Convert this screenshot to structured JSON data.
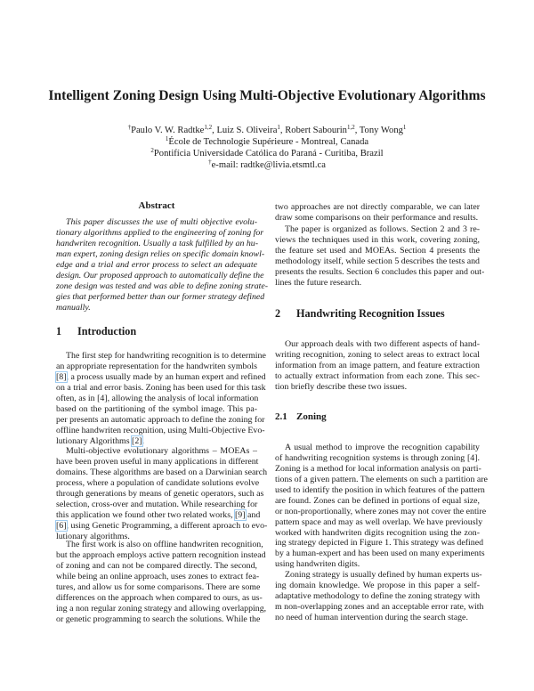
{
  "title": "Intelligent Zoning Design Using Multi-Objective Evolutionary Algorithms",
  "authors": [
    {
      "pre": "†",
      "name": "Paulo V. W. Radtke",
      "sup": "1,2",
      "sep": ", "
    },
    {
      "pre": "",
      "name": "Luiz S. Oliveira",
      "sup": "1",
      "sep": ", "
    },
    {
      "pre": "",
      "name": "Robert Sabourin",
      "sup": "1,2",
      "sep": ", "
    },
    {
      "pre": "",
      "name": "Tony Wong",
      "sup": "1",
      "sep": ""
    }
  ],
  "affiliations": [
    {
      "sup": "1",
      "text": "École de Technologie Supérieure - Montreal, Canada"
    },
    {
      "sup": "2",
      "text": "Pontifícia Universidade Católica do Paraná - Curitiba, Brazil"
    },
    {
      "sup": "†",
      "text": "e-mail: radtke@livia.etsmtl.ca"
    }
  ],
  "abstract": {
    "heading": "Abstract",
    "lines": [
      "This paper discusses the use of multi objective evolu-",
      "tionary algorithms applied to the engineering of zoning for",
      "handwriten recognition. Usually a task fulfilled by an hu-",
      "man expert, zoning design relies on specific domain knowl-",
      "edge and a trial and error process to select an adequate",
      "design. Our proposed approach to automatically define the",
      "zone design was tested and was able to define zoning strate-",
      "gies that performed better than our former strategy defined",
      "manually."
    ]
  },
  "sections": {
    "s1": {
      "num": "1",
      "title": "Introduction"
    },
    "s2": {
      "num": "2",
      "title": "Handwriting Recognition Issues"
    },
    "s21": {
      "num": "2.1",
      "title": "Zoning"
    }
  },
  "left_paragraphs": [
    [
      "The first step for handwriting recognition is to determine",
      "an appropriate representation for the handwriten symbols",
      "[8], a process usually made by an human expert and refined",
      "on a trial and error basis. Zoning has been used for this task",
      "often, as in [4], allowing the analysis of local information",
      "based on the partitioning of the symbol image. This pa-",
      "per presents an automatic approach to define the zoning for",
      "offline handwriten recognition, using Multi-Objective Evo-",
      "lutionary Algorithms [2]."
    ],
    [
      "Multi-objective evolutionary algorithms – MOEAs –",
      "have been proven useful in many applications in different",
      "domains. These algorithms are based on a Darwinian search",
      "process, where a population of candidate solutions evolve",
      "through generations by means of genetic operators, such as",
      "selection, cross-over and mutation. While researching for",
      "this application we found other two related works, [9] and",
      "[6], using Genetic Programming, a different aproach to evo-",
      "lutionary algorithms."
    ],
    [
      "The first work is also on offline handwriten recognition,",
      "but the approach employs active pattern recognition instead",
      "of zoning and can not be compared directly. The second,",
      "while being an online approach, uses zones to extract fea-",
      "tures, and allow us for some comparisons. There are some",
      "differences on the approach when compared to ours, as us-",
      "ing a non regular zoning strategy and allowing overlapping,",
      "or genetic programming to search the solutions. While the"
    ]
  ],
  "right_paragraphs": [
    [
      "two approaches are not directly comparable, we can later",
      "draw some comparisons on their performance and results."
    ],
    [
      "The paper is organized as follows. Section 2 and 3 re-",
      "views the techniques used in this work, covering zoning,",
      "the feature set used and MOEAs. Section 4 presents the",
      "methodology itself, while section 5 describes the tests and",
      "presents the results. Section 6 concludes this paper and out-",
      "lines the future research."
    ],
    [
      "Our approach deals with two different aspects of hand-",
      "writing recognition, zoning to select areas to extract local",
      "information from an image pattern, and feature extraction",
      "to actually extract information from each zone. This sec-",
      "tion briefly describe these two issues."
    ],
    [
      "A usual method to improve the recognition capability",
      "of handwriting recognition systems is through zoning [4].",
      "Zoning is a method for local information analysis on parti-",
      "tions of a given pattern. The elements on such a partition are",
      "used to identify the position in which features of the pattern",
      "are found. Zones can be defined in portions of equal size,",
      "or non-proportionally, where zones may not cover the entire",
      "pattern space and may as well overlap. We have previously",
      "worked with handwriten digits recognition using the zon-",
      "ing strategy depicted in Figure 1. This strategy was defined",
      "by a human-expert and has been used on many experiments",
      "using handwriten digits."
    ],
    [
      "Zoning strategy is usually defined by human experts us-",
      "ing domain knowledge. We propose in this paper a self-",
      "adaptative methodology to define the zoning strategy with",
      "m non-overlapping zones and an acceptable error rate, with",
      "no need of human intervention during the search stage."
    ]
  ],
  "linked_citations": [
    "[8]",
    "[2]",
    "[9]",
    "[6]"
  ],
  "colors": {
    "citation_box": "#9ecbf0",
    "text": "#1a1a1a"
  }
}
